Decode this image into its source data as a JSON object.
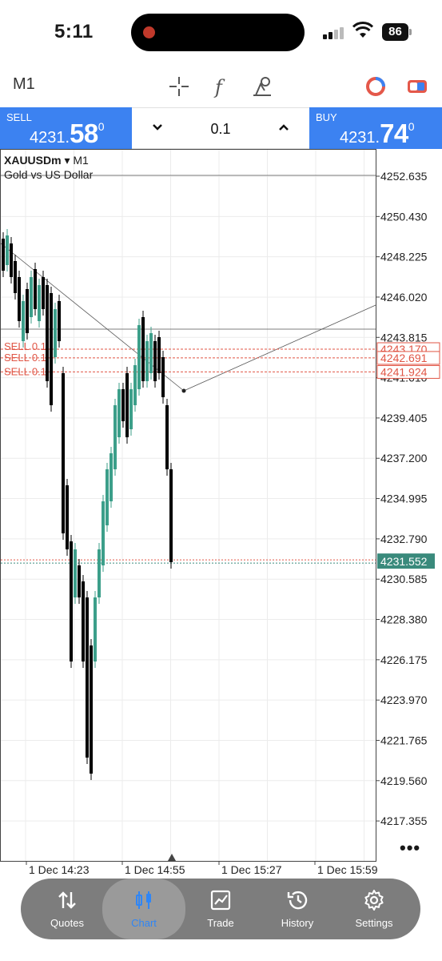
{
  "status_bar": {
    "time": "5:11",
    "battery": "86"
  },
  "toolbar": {
    "timeframe": "M1"
  },
  "trade_panel": {
    "sell": {
      "label": "SELL",
      "price_small": "4231.",
      "price_big": "58",
      "price_sup": "0"
    },
    "buy": {
      "label": "BUY",
      "price_small": "4231.",
      "price_big": "74",
      "price_sup": "0"
    },
    "lot": "0.1"
  },
  "chart": {
    "symbol": "XAUUSDm",
    "timeframe": "M1",
    "description": "Gold vs US Dollar",
    "price_labels": [
      "4252.635",
      "4250.430",
      "4248.225",
      "4246.020",
      "4243.815",
      "4241.610",
      "4239.405",
      "4237.200",
      "4234.995",
      "4232.790",
      "4230.585",
      "4228.380",
      "4226.175",
      "4223.970",
      "4221.765",
      "4219.560",
      "4217.355"
    ],
    "order_labels": [
      "4243.170",
      "4242.691",
      "4241.924"
    ],
    "order_tags": [
      "SELL 0.1",
      "SELL 0.1",
      "SELL 0.1"
    ],
    "current_price": "4231.552",
    "time_labels": [
      "1 Dec 14:23",
      "1 Dec 14:55",
      "1 Dec 15:27",
      "1 Dec 15:59"
    ],
    "colors": {
      "bull": "#3c9f8a",
      "bear": "#000000",
      "order_line": "#e05545",
      "current": "#3a8a7c"
    }
  },
  "tabs": [
    {
      "label": "Quotes",
      "icon": "quotes-icon"
    },
    {
      "label": "Chart",
      "icon": "chart-icon",
      "active": true
    },
    {
      "label": "Trade",
      "icon": "trade-icon"
    },
    {
      "label": "History",
      "icon": "history-icon"
    },
    {
      "label": "Settings",
      "icon": "settings-icon"
    }
  ]
}
